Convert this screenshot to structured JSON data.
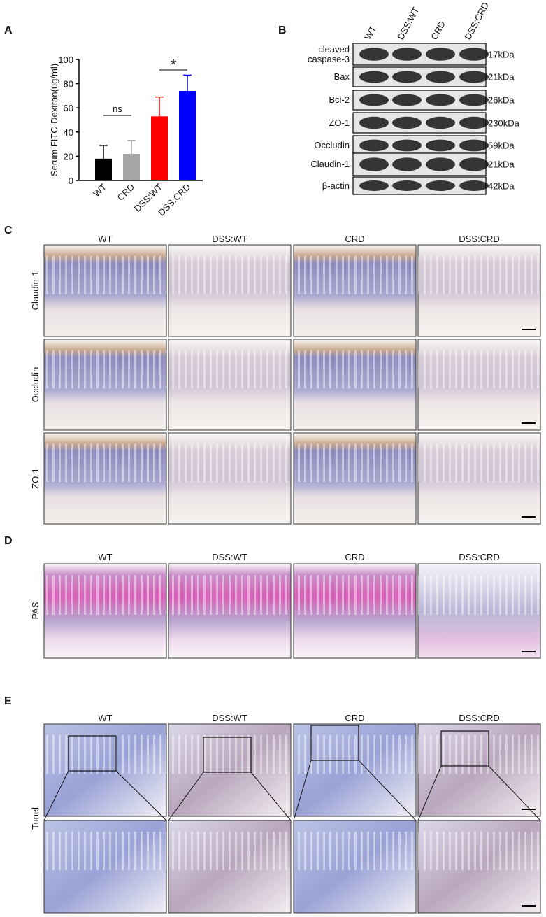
{
  "chart_data": {
    "type": "bar",
    "label": "A",
    "ylabel": "Serum FITC-Dextran(ug/ml)",
    "categories": [
      "WT",
      "CRD",
      "DSS:WT",
      "DSS:CRD"
    ],
    "values": [
      18,
      22,
      53,
      74
    ],
    "errors": [
      11,
      11,
      16,
      13
    ],
    "colors": [
      "#000000",
      "#a6a6a6",
      "#ff0000",
      "#0000ff"
    ],
    "ylim": [
      0,
      100
    ],
    "yticks": [
      0,
      20,
      40,
      60,
      80,
      100
    ],
    "annotations": [
      "ns",
      "*"
    ]
  },
  "western_blot": {
    "label": "B",
    "columns": [
      "WT",
      "DSS:WT",
      "CRD",
      "DSS:CRD"
    ],
    "rows": [
      {
        "protein": "cleaved caspase-3",
        "size": "17kDa"
      },
      {
        "protein": "Bax",
        "size": "21kDa"
      },
      {
        "protein": "Bcl-2",
        "size": "26kDa"
      },
      {
        "protein": "ZO-1",
        "size": "230kDa"
      },
      {
        "protein": "Occludin",
        "size": "59kDa"
      },
      {
        "protein": "Claudin-1",
        "size": "21kDa"
      },
      {
        "protein": "β-actin",
        "size": "42kDa"
      }
    ]
  },
  "ihc": {
    "label": "C",
    "columns": [
      "WT",
      "DSS:WT",
      "CRD",
      "DSS:CRD"
    ],
    "rows": [
      "Claudin-1",
      "Occludin",
      "ZO-1"
    ]
  },
  "pas": {
    "label": "D",
    "columns": [
      "WT",
      "DSS:WT",
      "CRD",
      "DSS:CRD"
    ],
    "rows": [
      "PAS"
    ]
  },
  "tunel": {
    "label": "E",
    "columns": [
      "WT",
      "DSS:WT",
      "CRD",
      "DSS:CRD"
    ],
    "rows": [
      "Tunel"
    ]
  }
}
